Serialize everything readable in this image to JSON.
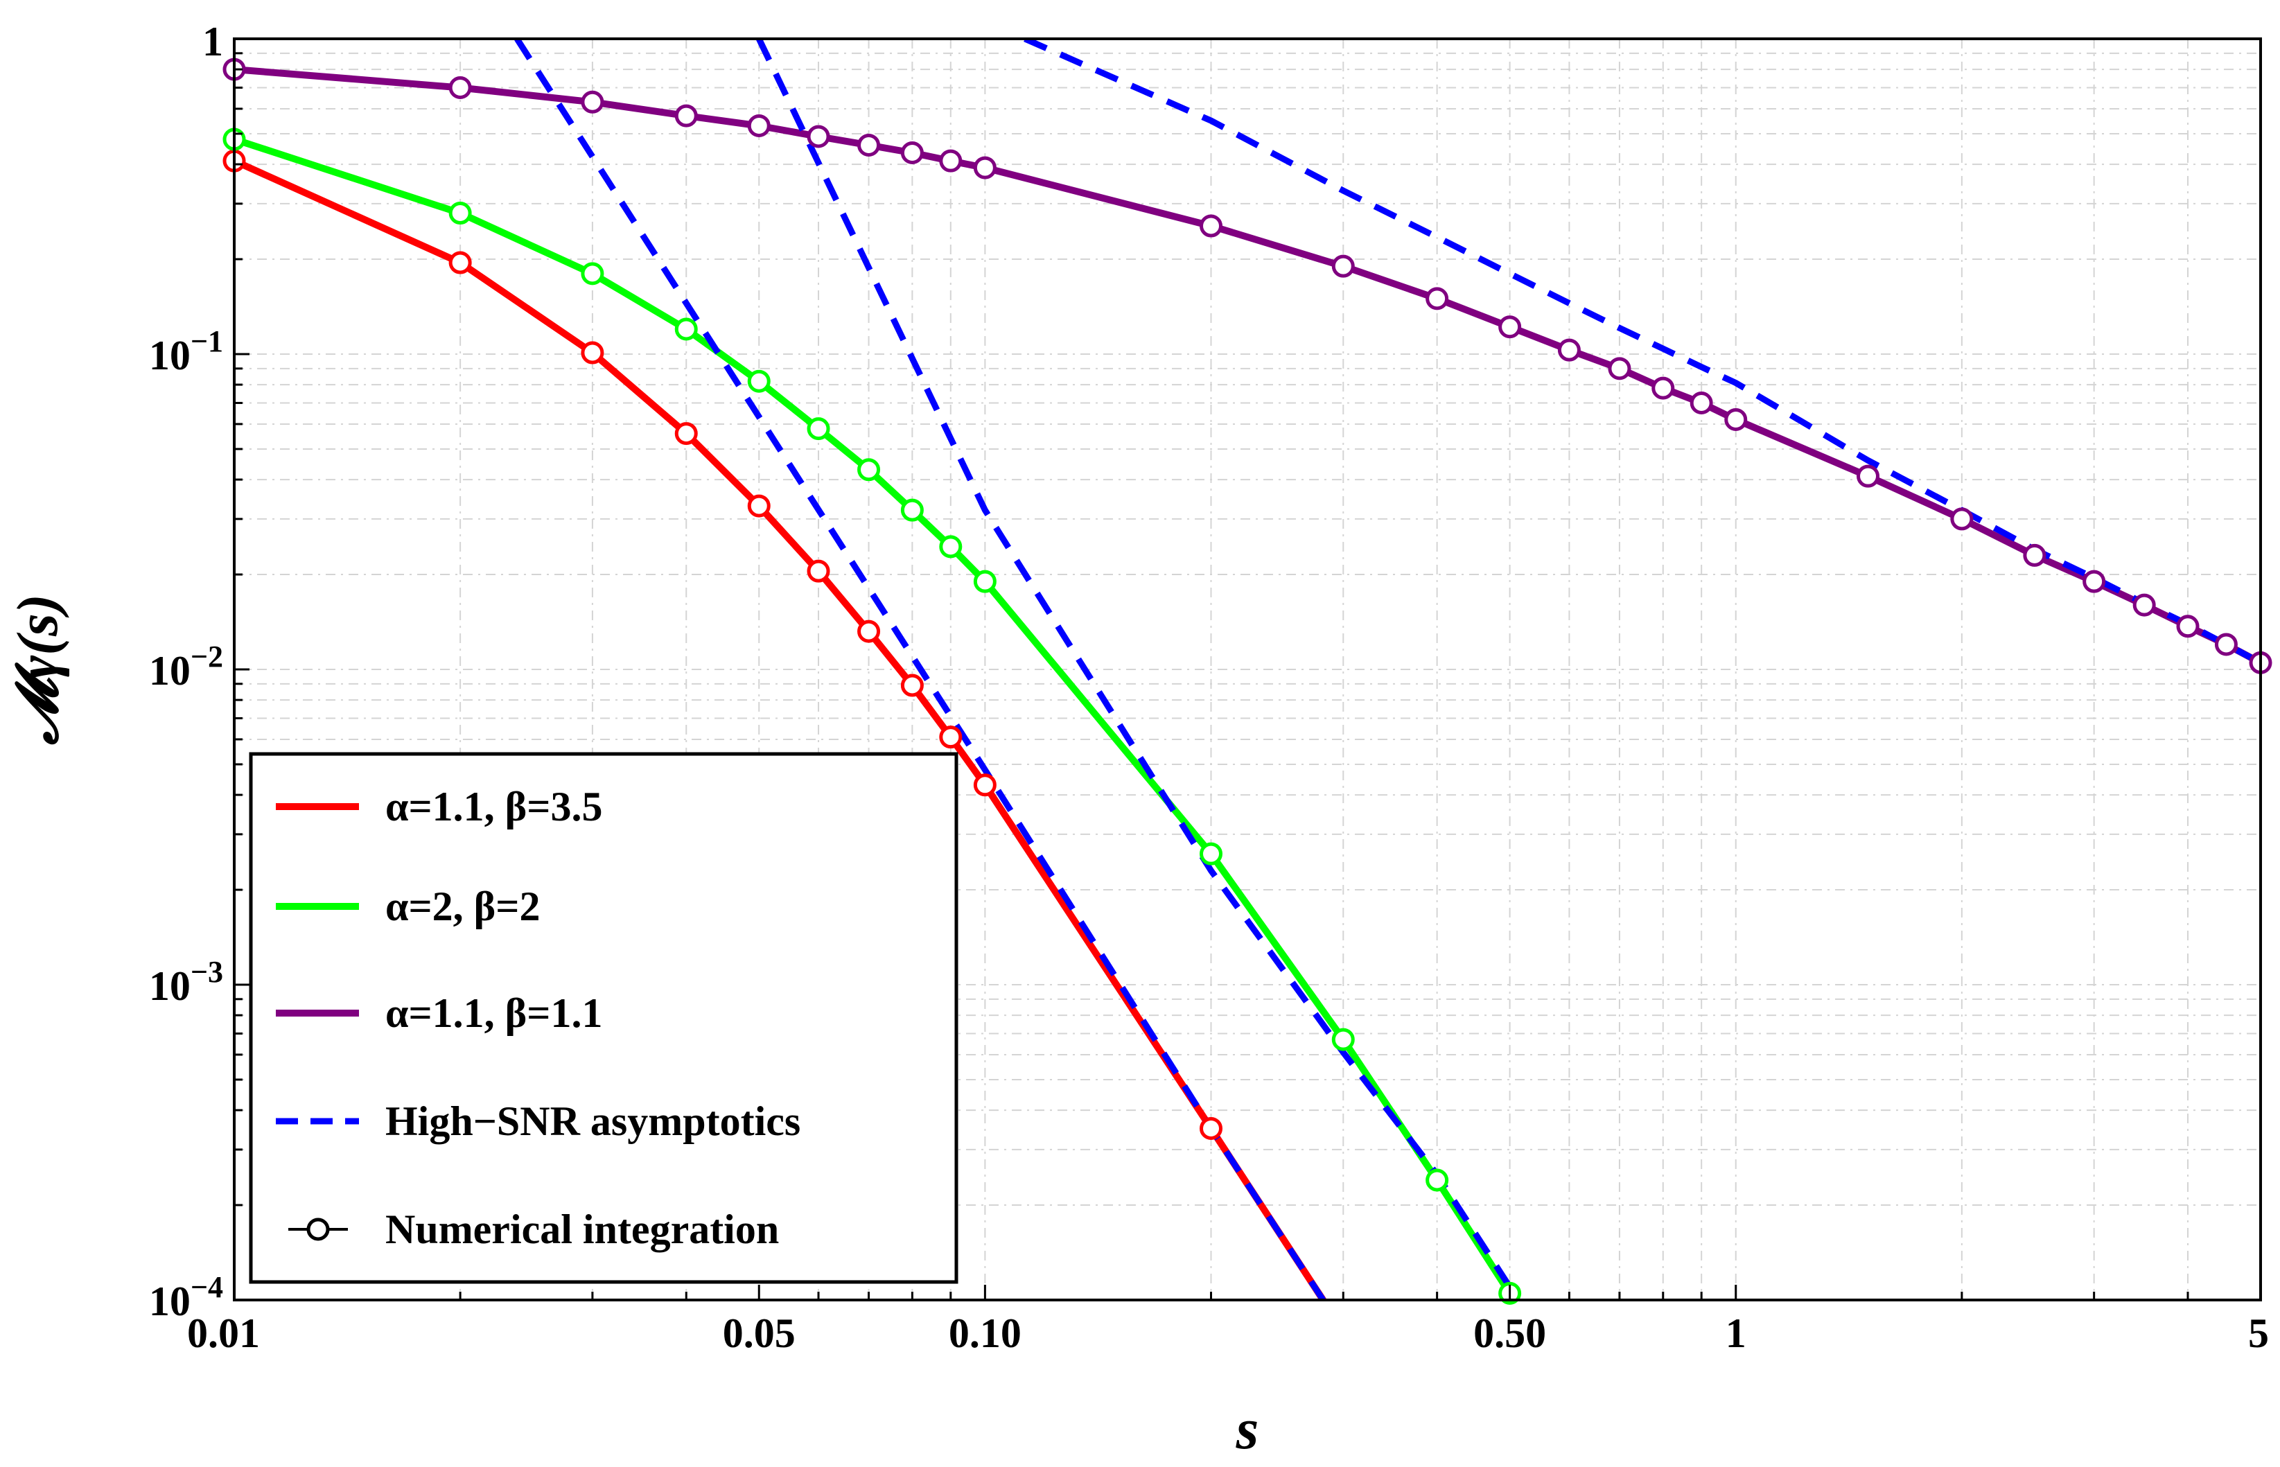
{
  "chart_data": {
    "type": "line",
    "title": "",
    "xlabel": "s",
    "ylabel": "𝓜γ(s)",
    "xscale": "log",
    "yscale": "log",
    "xlim": [
      0.01,
      5
    ],
    "ylim": [
      0.0001,
      1
    ],
    "grid": true,
    "legend_position": "bottom-left",
    "xticks": [
      {
        "value": 0.01,
        "label": "0.01"
      },
      {
        "value": 0.05,
        "label": "0.05"
      },
      {
        "value": 0.1,
        "label": "0.10"
      },
      {
        "value": 0.5,
        "label": "0.50"
      },
      {
        "value": 1,
        "label": "1"
      },
      {
        "value": 5,
        "label": "5"
      }
    ],
    "yticks": [
      {
        "value": 0.0001,
        "base": "10",
        "exp": "−4"
      },
      {
        "value": 0.001,
        "base": "10",
        "exp": "−3"
      },
      {
        "value": 0.01,
        "base": "10",
        "exp": "−2"
      },
      {
        "value": 0.1,
        "base": "10",
        "exp": "−1"
      },
      {
        "value": 1,
        "base": "1",
        "exp": ""
      }
    ],
    "series": [
      {
        "name": "α=1.1, β=3.5",
        "color": "#ff0000",
        "style": "solid",
        "x": [
          0.01,
          0.02,
          0.03,
          0.04,
          0.05,
          0.06,
          0.07,
          0.08,
          0.09,
          0.1,
          0.2,
          0.282
        ],
        "y": [
          0.41,
          0.195,
          0.101,
          0.056,
          0.033,
          0.0205,
          0.0132,
          0.0089,
          0.0061,
          0.0043,
          0.00035,
          0.0001
        ]
      },
      {
        "name": "α=2, β=2",
        "color": "#00ff00",
        "style": "solid",
        "x": [
          0.01,
          0.02,
          0.03,
          0.04,
          0.05,
          0.06,
          0.07,
          0.08,
          0.09,
          0.1,
          0.2,
          0.3,
          0.4,
          0.5
        ],
        "y": [
          0.48,
          0.28,
          0.18,
          0.12,
          0.082,
          0.058,
          0.043,
          0.032,
          0.0245,
          0.019,
          0.0026,
          0.00067,
          0.00024,
          0.000105
        ]
      },
      {
        "name": "α=1.1, β=1.1",
        "color": "#800080",
        "style": "solid",
        "x": [
          0.01,
          0.02,
          0.03,
          0.04,
          0.05,
          0.06,
          0.07,
          0.08,
          0.09,
          0.1,
          0.2,
          0.3,
          0.4,
          0.5,
          0.6,
          0.7,
          0.8,
          0.9,
          1,
          1.5,
          2,
          2.5,
          3,
          3.5,
          4,
          4.5,
          5
        ],
        "y": [
          0.8,
          0.7,
          0.63,
          0.57,
          0.53,
          0.49,
          0.46,
          0.435,
          0.41,
          0.39,
          0.255,
          0.19,
          0.15,
          0.122,
          0.103,
          0.09,
          0.078,
          0.07,
          0.062,
          0.041,
          0.03,
          0.023,
          0.019,
          0.016,
          0.0137,
          0.012,
          0.0105
        ]
      },
      {
        "name": "High−SNR asymptotics",
        "color": "#0000ff",
        "style": "dashed",
        "segments": [
          {
            "x": [
              0.0238,
              0.1,
              0.2,
              0.282
            ],
            "y": [
              1,
              0.0048,
              0.00035,
              0.0001
            ]
          },
          {
            "x": [
              0.05,
              0.1,
              0.2,
              0.3,
              0.4,
              0.5
            ],
            "y": [
              1,
              0.032,
              0.0023,
              0.00061,
              0.00025,
              0.00011
            ]
          },
          {
            "x": [
              0.113,
              0.2,
              0.3,
              0.4,
              0.5,
              0.6,
              0.7,
              0.8,
              0.9,
              1,
              1.5,
              2,
              2.5,
              3,
              3.5,
              4,
              4.5,
              5
            ],
            "y": [
              1,
              0.55,
              0.33,
              0.235,
              0.18,
              0.145,
              0.121,
              0.104,
              0.091,
              0.081,
              0.046,
              0.032,
              0.024,
              0.0195,
              0.0162,
              0.0139,
              0.012,
              0.0105
            ]
          }
        ]
      },
      {
        "name": "Numerical integration",
        "color": "#000000",
        "style": "markers"
      }
    ]
  }
}
